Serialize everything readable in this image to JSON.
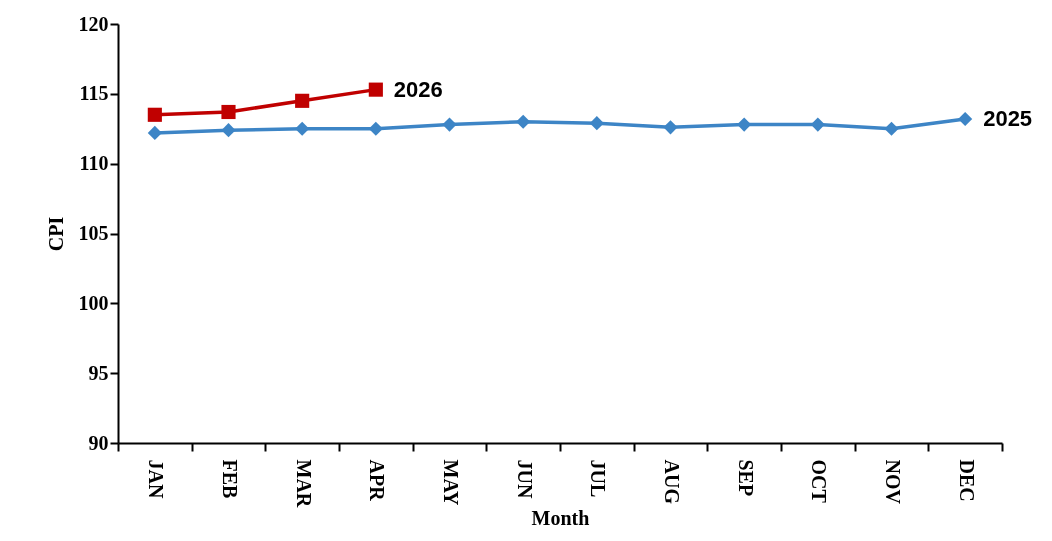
{
  "chart_data": {
    "type": "line",
    "xlabel": "Month",
    "ylabel": "CPI",
    "categories": [
      "JAN",
      "FEB",
      "MAR",
      "APR",
      "MAY",
      "JUN",
      "JUL",
      "AUG",
      "SEP",
      "OCT",
      "NOV",
      "DEC"
    ],
    "ylim": [
      90,
      120
    ],
    "yticks": [
      90,
      95,
      100,
      105,
      110,
      115,
      120
    ],
    "grid": false,
    "legend": false,
    "series": [
      {
        "name": "2026",
        "color": "#c00000",
        "marker": "square",
        "values": [
          113.5,
          113.7,
          114.5,
          115.3,
          null,
          null,
          null,
          null,
          null,
          null,
          null,
          null
        ]
      },
      {
        "name": "2025",
        "color": "#3d85c6",
        "marker": "diamond",
        "values": [
          112.2,
          112.4,
          112.5,
          112.5,
          112.8,
          113.0,
          112.9,
          112.6,
          112.8,
          112.8,
          112.5,
          113.2
        ]
      }
    ]
  }
}
